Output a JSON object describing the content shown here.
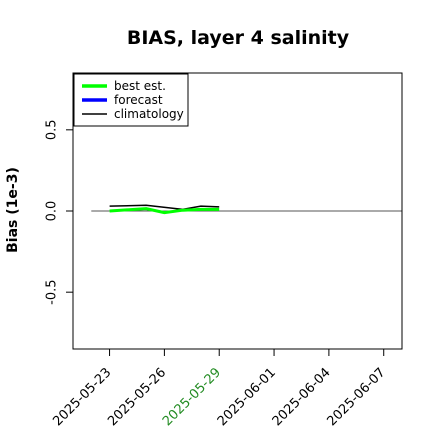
{
  "chart_data": {
    "type": "line",
    "title": "BIAS, layer 4 salinity",
    "ylabel": "Bias (1e-3)",
    "xlabel": "",
    "ylim": [
      -0.85,
      0.85
    ],
    "yticks": [
      -0.5,
      0.0,
      0.5
    ],
    "ytick_labels": [
      "-0.5",
      "0.0",
      "0.5"
    ],
    "xlim": [
      "2025-05-21",
      "2025-06-08"
    ],
    "xticks": [
      {
        "date": "2025-05-23",
        "label": "2025-05-23",
        "color": "#000000"
      },
      {
        "date": "2025-05-26",
        "label": "2025-05-26",
        "color": "#000000"
      },
      {
        "date": "2025-05-29",
        "label": "2025-05-29",
        "color": "#228B22"
      },
      {
        "date": "2025-06-01",
        "label": "2025-06-01",
        "color": "#000000"
      },
      {
        "date": "2025-06-04",
        "label": "2025-06-04",
        "color": "#000000"
      },
      {
        "date": "2025-06-07",
        "label": "2025-06-07",
        "color": "#000000"
      }
    ],
    "zero_line": {
      "from": "2025-05-22",
      "to": "2025-06-08",
      "y": 0.0,
      "color": "#555555"
    },
    "legend": {
      "placement": "top-left",
      "entries": [
        {
          "label": "best est.",
          "color": "#00ff00",
          "weight": "thick"
        },
        {
          "label": "forecast",
          "color": "#0000ff",
          "weight": "thick"
        },
        {
          "label": "climatology",
          "color": "#000000",
          "weight": "thin"
        }
      ]
    },
    "series": [
      {
        "name": "climatology",
        "color": "#000000",
        "weight": "thin",
        "points": [
          {
            "x": "2025-05-23",
            "y": 0.03
          },
          {
            "x": "2025-05-25",
            "y": 0.035
          },
          {
            "x": "2025-05-27",
            "y": 0.01
          },
          {
            "x": "2025-05-28",
            "y": 0.03
          },
          {
            "x": "2025-05-29",
            "y": 0.025
          }
        ]
      },
      {
        "name": "best est.",
        "color": "#00ff00",
        "weight": "thick",
        "points": [
          {
            "x": "2025-05-23",
            "y": 0.0
          },
          {
            "x": "2025-05-25",
            "y": 0.015
          },
          {
            "x": "2025-05-26",
            "y": -0.01
          },
          {
            "x": "2025-05-27",
            "y": 0.005
          },
          {
            "x": "2025-05-28",
            "y": 0.01
          },
          {
            "x": "2025-05-29",
            "y": 0.01
          }
        ]
      }
    ]
  }
}
